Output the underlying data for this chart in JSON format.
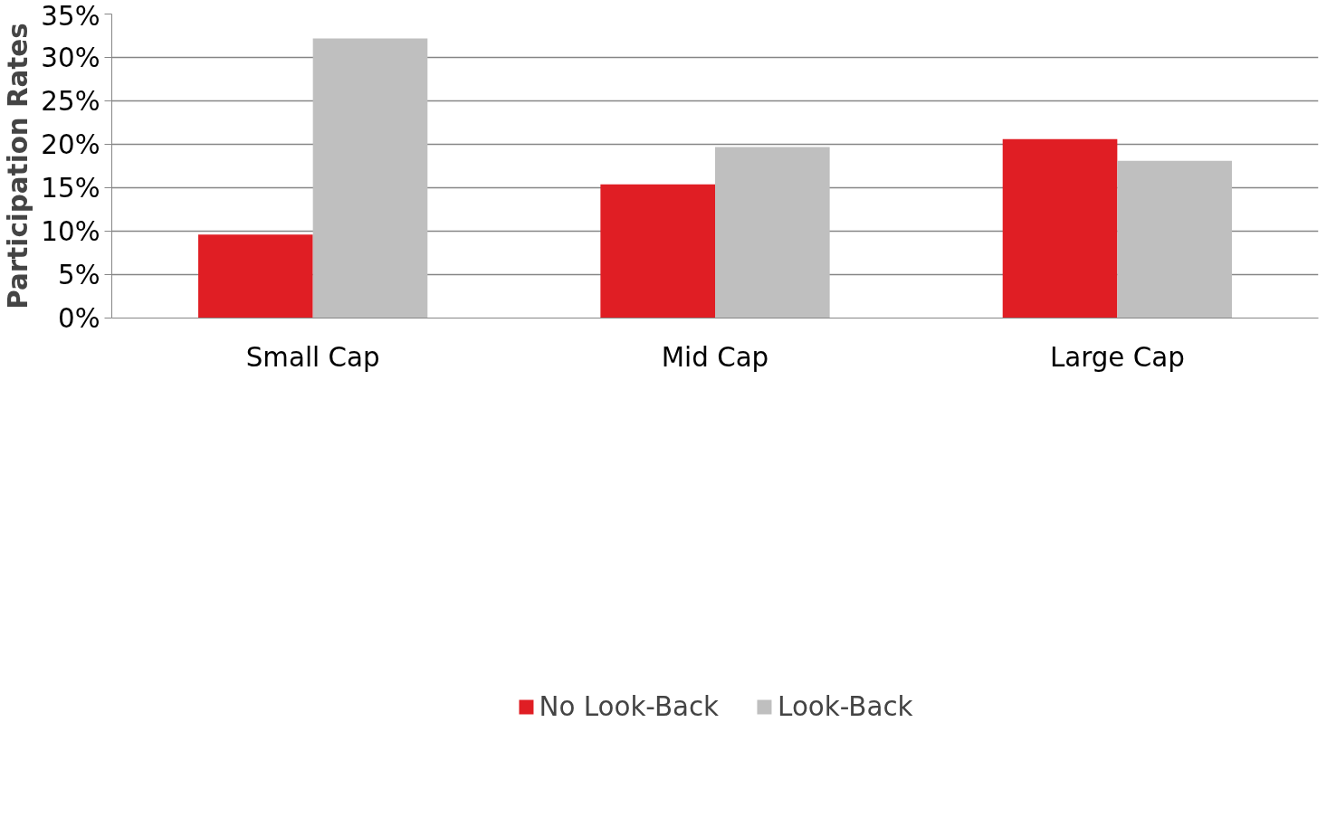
{
  "chart_data": {
    "type": "bar",
    "ylabel": "Participation Rates",
    "categories": [
      "Small Cap",
      "Mid Cap",
      "Large Cap"
    ],
    "series": [
      {
        "name": "No Look-Back",
        "color": "#e01e24",
        "values": [
          9.6,
          15.4,
          20.6
        ]
      },
      {
        "name": "Look-Back",
        "color": "#bfbfbf",
        "values": [
          32.2,
          19.7,
          18.1
        ]
      }
    ],
    "ylim": [
      0,
      35
    ],
    "yticks": [
      {
        "value": 0,
        "label": "0%"
      },
      {
        "value": 5,
        "label": "5%"
      },
      {
        "value": 10,
        "label": "10%"
      },
      {
        "value": 15,
        "label": "15%"
      },
      {
        "value": 20,
        "label": "20%"
      },
      {
        "value": 25,
        "label": "25%"
      },
      {
        "value": 30,
        "label": "30%"
      },
      {
        "value": 35,
        "label": "35%"
      }
    ],
    "grid": "y",
    "legend": "bottom"
  }
}
